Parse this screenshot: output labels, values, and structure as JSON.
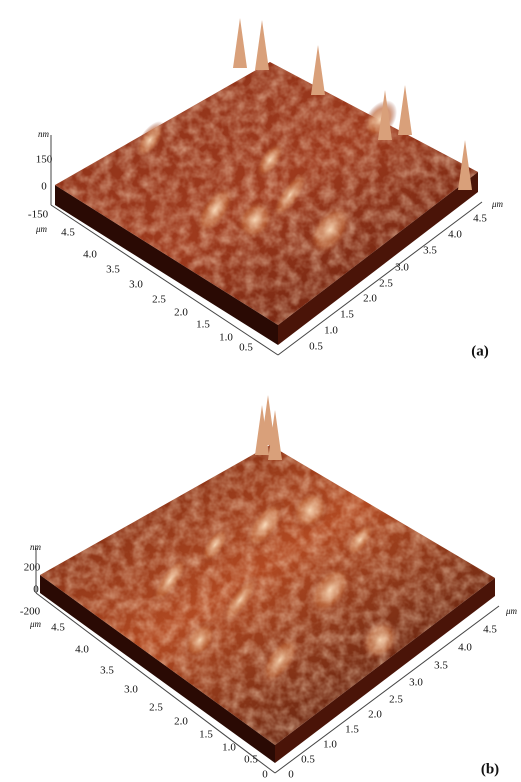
{
  "panels": [
    {
      "label": "(a)",
      "z_unit": "nm",
      "z_ticks": [
        "150",
        "0",
        "-150"
      ],
      "xy_unit": "μm",
      "left_ticks": [
        "4.5",
        "4.0",
        "3.5",
        "3.0",
        "2.5",
        "2.0",
        "1.5",
        "1.0",
        "0.5"
      ],
      "right_ticks": [
        "0.5",
        "1.0",
        "1.5",
        "2.0",
        "2.5",
        "3.0",
        "3.5",
        "4.0",
        "4.5"
      ]
    },
    {
      "label": "(b)",
      "z_unit": "nm",
      "z_ticks": [
        "200",
        "0",
        "-200"
      ],
      "xy_unit": "μm",
      "left_ticks": [
        "4.5",
        "4.0",
        "3.5",
        "3.0",
        "2.5",
        "2.0",
        "1.5",
        "1.0",
        "0.5"
      ],
      "right_ticks": [
        "0.5",
        "1.0",
        "1.5",
        "2.0",
        "2.5",
        "3.0",
        "3.5",
        "4.0",
        "4.5"
      ],
      "origin_labels": [
        "0",
        "0"
      ]
    }
  ]
}
